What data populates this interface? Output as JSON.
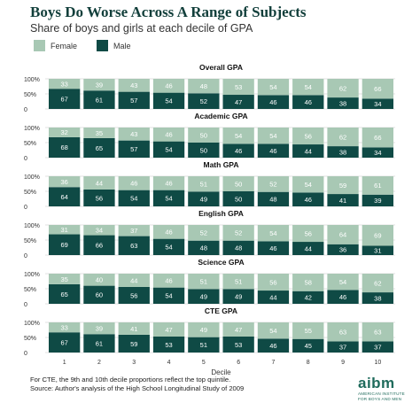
{
  "title": "Boys Do Worse Across A Range of Subjects",
  "subtitle": "Share of boys and girls at each decile of GPA",
  "legend": {
    "female": "Female",
    "male": "Male"
  },
  "colors": {
    "female": "#a8c8b4",
    "male": "#0f4a45",
    "female_text": "#ffffff",
    "male_text": "#ffffff",
    "grid": "#d9d9d9",
    "axis_text": "#333333"
  },
  "footnote": [
    "For CTE, the 9th and 10th decile proportions reflect the top quintile.",
    "Source: Author's analysis of the High School Longitudinal Study of 2009"
  ],
  "logo": {
    "word": "aibm",
    "tagline_1": "AMERICAN INSTITUTE",
    "tagline_2": "FOR BOYS AND MEN"
  },
  "chart_data": {
    "type": "bar",
    "stacked": true,
    "xlabel": "Decile",
    "categories": [
      "1",
      "2",
      "3",
      "4",
      "5",
      "6",
      "7",
      "8",
      "9",
      "10"
    ],
    "y_ticks": [
      "100%",
      "50%",
      "0"
    ],
    "ylim": [
      0,
      100
    ],
    "panels": [
      {
        "title": "Overall GPA",
        "series": [
          {
            "name": "Male",
            "values": [
              67,
              61,
              57,
              54,
              52,
              47,
              46,
              46,
              38,
              34
            ]
          },
          {
            "name": "Female",
            "values": [
              33,
              39,
              43,
              46,
              48,
              53,
              54,
              54,
              62,
              66
            ]
          }
        ]
      },
      {
        "title": "Academic GPA",
        "series": [
          {
            "name": "Male",
            "values": [
              68,
              65,
              57,
              54,
              50,
              46,
              46,
              44,
              38,
              34
            ]
          },
          {
            "name": "Female",
            "values": [
              32,
              35,
              43,
              46,
              50,
              54,
              54,
              56,
              62,
              66
            ]
          }
        ]
      },
      {
        "title": "Math GPA",
        "series": [
          {
            "name": "Male",
            "values": [
              64,
              56,
              54,
              54,
              49,
              50,
              48,
              46,
              41,
              39
            ]
          },
          {
            "name": "Female",
            "values": [
              36,
              44,
              46,
              46,
              51,
              50,
              52,
              54,
              59,
              61
            ]
          }
        ]
      },
      {
        "title": "English GPA",
        "series": [
          {
            "name": "Male",
            "values": [
              69,
              66,
              63,
              54,
              48,
              48,
              46,
              44,
              36,
              31
            ]
          },
          {
            "name": "Female",
            "values": [
              31,
              34,
              37,
              46,
              52,
              52,
              54,
              56,
              64,
              69
            ]
          }
        ]
      },
      {
        "title": "Science GPA",
        "series": [
          {
            "name": "Male",
            "values": [
              65,
              60,
              56,
              54,
              49,
              49,
              44,
              42,
              46,
              38
            ]
          },
          {
            "name": "Female",
            "values": [
              35,
              40,
              44,
              46,
              51,
              51,
              56,
              58,
              54,
              62
            ]
          }
        ]
      },
      {
        "title": "CTE GPA",
        "series": [
          {
            "name": "Male",
            "values": [
              67,
              61,
              59,
              53,
              51,
              53,
              46,
              45,
              37,
              37
            ]
          },
          {
            "name": "Female",
            "values": [
              33,
              39,
              41,
              47,
              49,
              47,
              54,
              55,
              63,
              63
            ]
          }
        ]
      }
    ]
  }
}
